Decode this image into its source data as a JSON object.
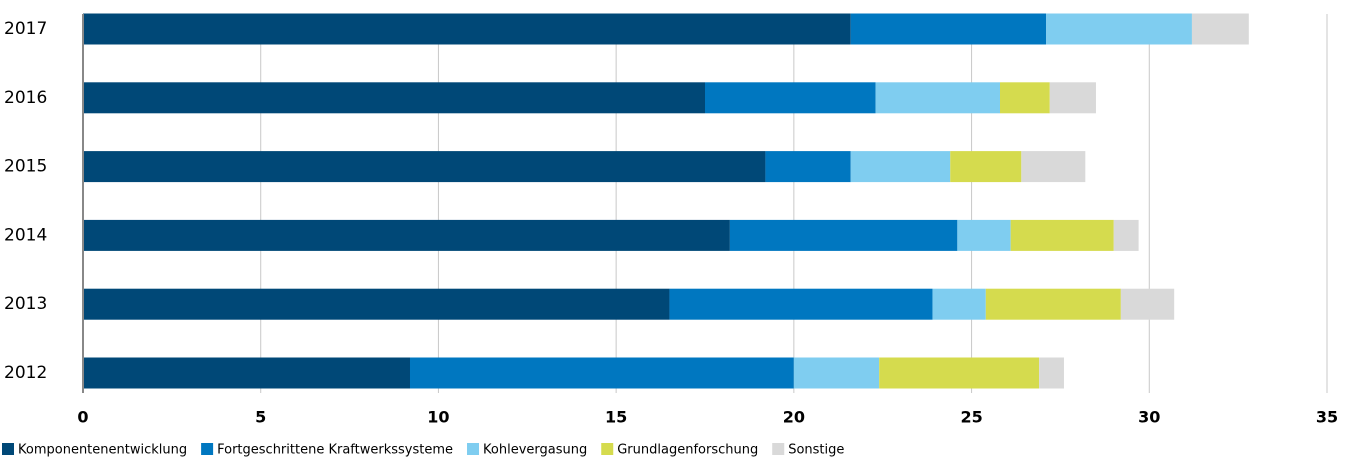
{
  "chart_data": {
    "type": "stacked_bar_horizontal",
    "categories": [
      "2017",
      "2016",
      "2015",
      "2014",
      "2013",
      "2012"
    ],
    "series": [
      {
        "name": "Komponentenentwicklung",
        "color": "#004877",
        "values": [
          21.6,
          17.5,
          19.2,
          18.2,
          16.5,
          9.2
        ]
      },
      {
        "name": "Fortgeschrittene Kraftwerkssysteme",
        "color": "#0077c0",
        "values": [
          5.5,
          4.8,
          2.4,
          6.4,
          7.4,
          10.8
        ]
      },
      {
        "name": "Kohlevergasung",
        "color": "#7fcdf0",
        "values": [
          4.1,
          3.5,
          2.8,
          1.5,
          1.5,
          2.4
        ]
      },
      {
        "name": "Grundlagenforschung",
        "color": "#d5db4e",
        "values": [
          0,
          1.4,
          2.0,
          2.9,
          3.8,
          4.5
        ]
      },
      {
        "name": "Sonstige",
        "color": "#d9d9d9",
        "values": [
          1.6,
          1.3,
          1.8,
          0.7,
          1.5,
          0.7
        ]
      }
    ],
    "xlim": [
      0,
      35
    ],
    "xticks": [
      0,
      5,
      10,
      15,
      20,
      25,
      30,
      35
    ],
    "grid": true,
    "legend": "bottom"
  }
}
